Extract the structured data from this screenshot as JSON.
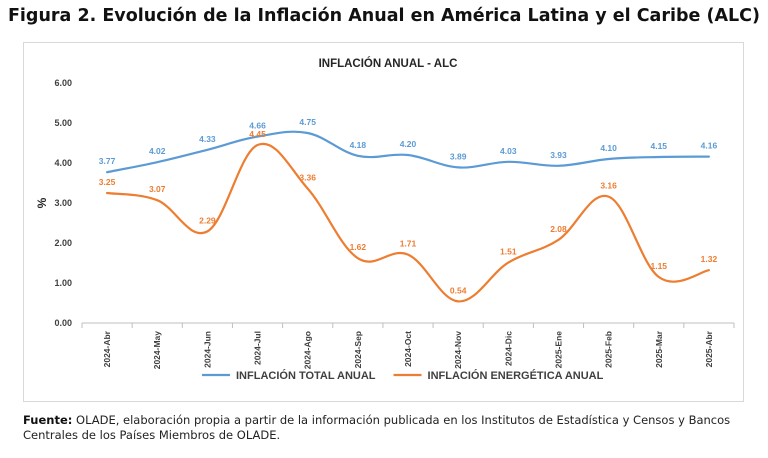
{
  "figure": {
    "title": "Figura 2. Evolución de la Inflación Anual en América Latina y el Caribe (ALC)",
    "source_label": "Fuente:",
    "source_text": " OLADE, elaboración propia a partir de la información publicada en los Institutos de Estadística y Censos y Bancos Centrales de los Países Miembros de OLADE."
  },
  "chart_data": {
    "type": "line",
    "title": "INFLACIÓN ANUAL - ALC",
    "xlabel": "",
    "ylabel": "%",
    "ylim": [
      0,
      6
    ],
    "yticks": [
      "0.00",
      "1.00",
      "2.00",
      "3.00",
      "4.00",
      "5.00",
      "6.00"
    ],
    "grid": false,
    "legend_position": "bottom",
    "categories": [
      "2024-Abr",
      "2024-May",
      "2024-Jun",
      "2024-Jul",
      "2024-Ago",
      "2024-Sep",
      "2024-Oct",
      "2024-Nov",
      "2024-Dic",
      "2025-Ene",
      "2025-Feb",
      "2025-Mar",
      "2025-Abr"
    ],
    "series": [
      {
        "name": "INFLACIÓN TOTAL ANUAL",
        "color": "#5b9bd5",
        "values": [
          3.77,
          4.02,
          4.33,
          4.66,
          4.75,
          4.18,
          4.2,
          3.89,
          4.03,
          3.93,
          4.1,
          4.15,
          4.16
        ],
        "labels": [
          "3.77",
          "4.02",
          "4.33",
          "4.66",
          "4.75",
          "4.18",
          "4.20",
          "3.89",
          "4.03",
          "3.93",
          "4.10",
          "4.15",
          "4.16"
        ]
      },
      {
        "name": "INFLACIÓN ENERGÉTICA ANUAL",
        "color": "#ed7d31",
        "values": [
          3.25,
          3.07,
          2.29,
          4.45,
          3.36,
          1.62,
          1.71,
          0.54,
          1.51,
          2.08,
          3.16,
          1.15,
          1.32
        ],
        "labels": [
          "3.25",
          "3.07",
          "2.29",
          "4.45",
          "3.36",
          "1.62",
          "1.71",
          "0.54",
          "1.51",
          "2.08",
          "3.16",
          "1.15",
          "1.32"
        ]
      }
    ]
  }
}
